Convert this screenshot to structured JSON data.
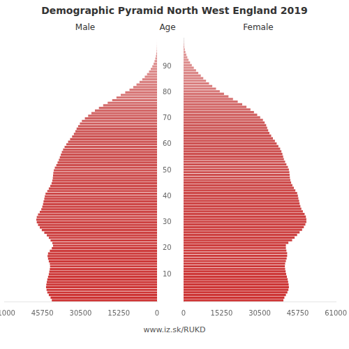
{
  "chart_data": {
    "type": "bar",
    "orientation": "horizontal",
    "title": "Demographic Pyramid North West England 2019",
    "ylabel": "Age",
    "annotations": [
      "www.iz.sk/RUKD"
    ],
    "categories": [
      null,
      null,
      null,
      null,
      null,
      null,
      null,
      null,
      null,
      null,
      "10",
      null,
      null,
      null,
      null,
      null,
      null,
      null,
      null,
      null,
      "20",
      null,
      null,
      null,
      null,
      null,
      null,
      null,
      null,
      null,
      "30",
      null,
      null,
      null,
      null,
      null,
      null,
      null,
      null,
      null,
      "40",
      null,
      null,
      null,
      null,
      null,
      null,
      null,
      null,
      null,
      "50",
      null,
      null,
      null,
      null,
      null,
      null,
      null,
      null,
      null,
      "60",
      null,
      null,
      null,
      null,
      null,
      null,
      null,
      null,
      null,
      "70",
      null,
      null,
      null,
      null,
      null,
      null,
      null,
      null,
      null,
      "80",
      null,
      null,
      null,
      null,
      null,
      null,
      null,
      null,
      null,
      "90",
      null,
      null,
      null,
      null,
      null,
      null,
      null,
      null,
      null,
      null
    ],
    "colors": [
      "#cd3333",
      "#cd3333",
      "#cd3434",
      "#cd3434",
      "#cd3535",
      "#cd3535",
      "#cd3636",
      "#cd3636",
      "#cd3737",
      "#cd3737",
      "#cd3838",
      "#cd3838",
      "#cd3939",
      "#cd3939",
      "#cd3a3a",
      "#cd3a3a",
      "#cd3b3b",
      "#cd3b3b",
      "#cd3c3c",
      "#cd3c3c",
      "#cd3d3d",
      "#cd3d3d",
      "#cd3e3e",
      "#cd3f3f",
      "#cd3f3f",
      "#cd4040",
      "#cd4040",
      "#cd4141",
      "#cd4141",
      "#cd4242",
      "#cd4242",
      "#cd4343",
      "#cd4343",
      "#cd4444",
      "#cd4444",
      "#cd4545",
      "#cd4545",
      "#cd4646",
      "#cd4646",
      "#cd4747",
      "#cd4747",
      "#cd4848",
      "#cd4848",
      "#cd4949",
      "#cd4a4a",
      "#cd4a4a",
      "#cd4b4b",
      "#cd4b4b",
      "#cd4c4c",
      "#cd4c4c",
      "#cd4d4d",
      "#cd4d4d",
      "#cd4e4e",
      "#cd4e4e",
      "#cd4f4f",
      "#cd4f4f",
      "#cd5050",
      "#cd5050",
      "#cd5151",
      "#cd5151",
      "#cd5252",
      "#cd5252",
      "#cd5353",
      "#cd5353",
      "#cd5454",
      "#cd5555",
      "#cd5757",
      "#ce5959",
      "#cf5b5b",
      "#cf5e5e",
      "#d06060",
      "#d16262",
      "#d16464",
      "#d26767",
      "#d36969",
      "#d36b6b",
      "#d46e6e",
      "#d57070",
      "#d57272",
      "#d67474",
      "#d77777",
      "#d77979",
      "#d87b7b",
      "#d97d7d",
      "#d98080",
      "#da8282",
      "#db8484",
      "#db8787",
      "#dc8989",
      "#dd8b8b",
      "#dd8d8d",
      "#de9090",
      "#df9292",
      "#df9494",
      "#e09696",
      "#e19999",
      "#e19b9b",
      "#e29d9d",
      "#e3a0a0",
      "#e3a2a2",
      "#e4a4a4"
    ],
    "series": [
      {
        "name": "Male",
        "values": [
          42000,
          42500,
          43200,
          43800,
          44100,
          44300,
          44200,
          44000,
          43800,
          43500,
          43200,
          43000,
          42800,
          42700,
          42800,
          43200,
          43500,
          43700,
          43500,
          42800,
          42000,
          41500,
          41800,
          42500,
          43200,
          44000,
          45000,
          46000,
          46800,
          47500,
          48000,
          48200,
          48000,
          47500,
          46800,
          46200,
          45800,
          45500,
          45300,
          45000,
          44800,
          44500,
          43800,
          43200,
          42600,
          42100,
          41800,
          41600,
          41500,
          41400,
          41200,
          40800,
          40200,
          39700,
          39200,
          38800,
          38400,
          38000,
          37500,
          36900,
          36200,
          35500,
          34700,
          33900,
          33200,
          32600,
          32100,
          31500,
          30800,
          30000,
          28800,
          27500,
          26200,
          24800,
          23200,
          21500,
          19700,
          17900,
          16200,
          14500,
          12700,
          11000,
          9500,
          8200,
          7000,
          5900,
          4900,
          4000,
          3200,
          2500,
          1900,
          1400,
          1000,
          700,
          460,
          280,
          160,
          80,
          40,
          15,
          5
        ]
      },
      {
        "name": "Female",
        "values": [
          40000,
          40400,
          41000,
          41600,
          42000,
          42200,
          42100,
          41900,
          41700,
          41400,
          41100,
          40900,
          40700,
          40600,
          40700,
          41000,
          41300,
          41500,
          41500,
          41200,
          41000,
          41000,
          42000,
          43500,
          44500,
          45500,
          46500,
          47500,
          48200,
          48800,
          49200,
          49200,
          49000,
          48500,
          47800,
          47200,
          46800,
          46500,
          46300,
          46000,
          45800,
          45500,
          44800,
          44200,
          43600,
          43100,
          42800,
          42600,
          42500,
          42400,
          42200,
          41800,
          41200,
          40700,
          40200,
          39900,
          39600,
          39200,
          38700,
          38000,
          37300,
          36600,
          35800,
          35100,
          34400,
          33900,
          33500,
          33100,
          32500,
          31800,
          30700,
          29500,
          28200,
          26800,
          25200,
          23500,
          21700,
          19800,
          18000,
          16200,
          14500,
          13000,
          11500,
          10200,
          9000,
          7900,
          6900,
          5900,
          5000,
          4100,
          3300,
          2600,
          2000,
          1500,
          1100,
          750,
          480,
          280,
          150,
          60,
          20
        ]
      }
    ],
    "xlim": [
      0,
      61000
    ],
    "xticks": [
      0,
      15250,
      30500,
      45750,
      61000
    ],
    "grid": false
  }
}
